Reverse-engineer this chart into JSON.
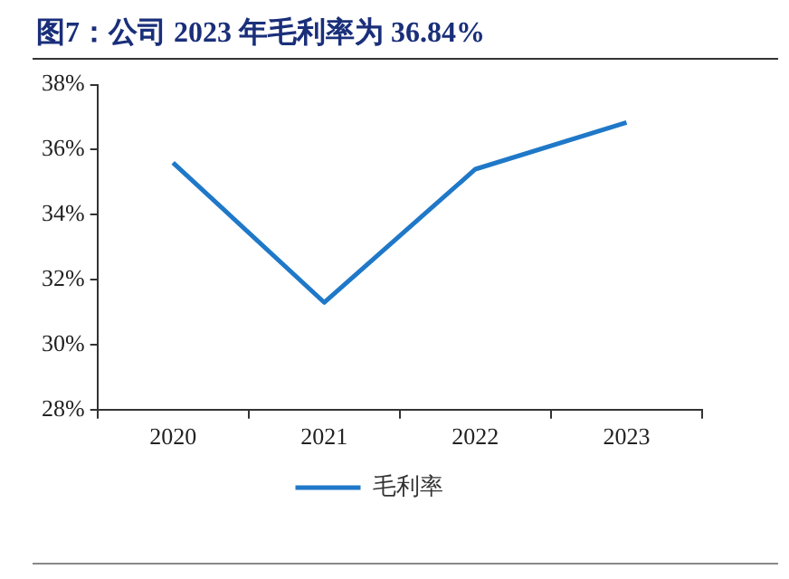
{
  "chart_data": {
    "type": "line",
    "title": "图7：公司 2023 年毛利率为 36.84%",
    "categories": [
      "2020",
      "2021",
      "2022",
      "2023"
    ],
    "series": [
      {
        "name": "毛利率",
        "color": "#1f78c8",
        "values": [
          35.6,
          31.3,
          35.4,
          36.84
        ]
      }
    ],
    "ylim": [
      28,
      38
    ],
    "yticks": [
      {
        "value": 28,
        "label": "28%"
      },
      {
        "value": 30,
        "label": "30%"
      },
      {
        "value": 32,
        "label": "32%"
      },
      {
        "value": 34,
        "label": "34%"
      },
      {
        "value": 36,
        "label": "36%"
      },
      {
        "value": 38,
        "label": "38%"
      }
    ],
    "grid": false,
    "legend": "bottom",
    "marker": "none",
    "line_style": "solid"
  }
}
